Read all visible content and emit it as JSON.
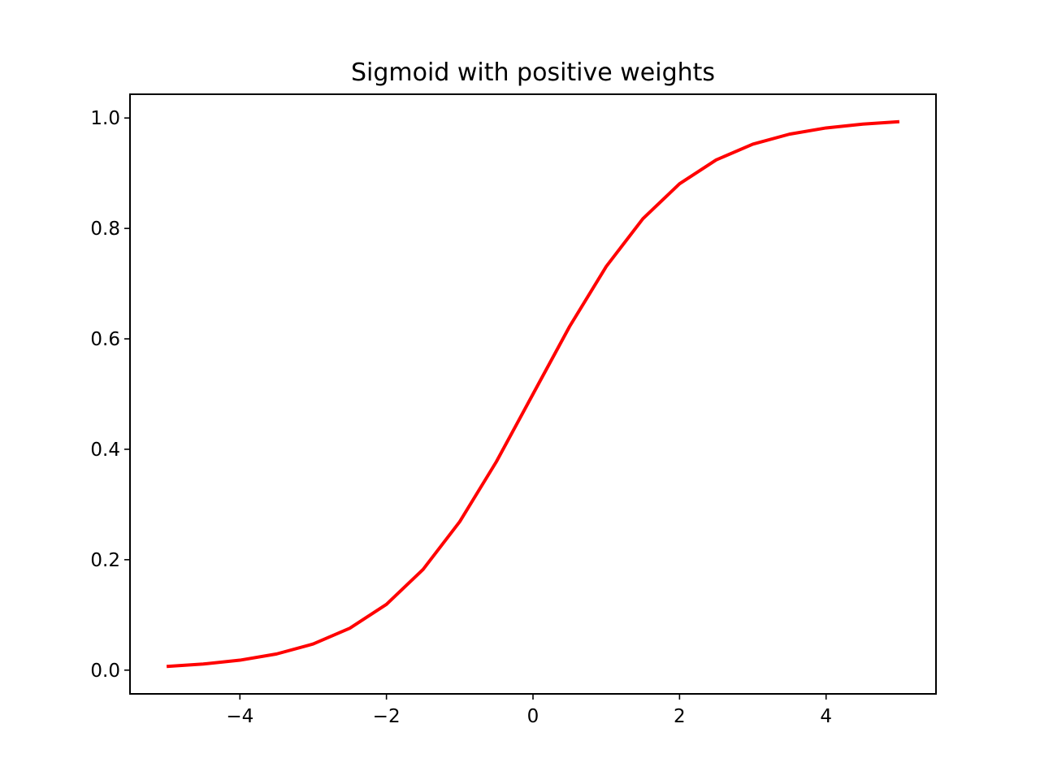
{
  "chart_data": {
    "type": "line",
    "title": "Sigmoid with positive weights",
    "xlabel": "",
    "ylabel": "",
    "xlim": [
      -5.5,
      5.5
    ],
    "ylim": [
      -0.043,
      1.043
    ],
    "xticks": [
      -4,
      -2,
      0,
      2,
      4
    ],
    "xtick_labels": [
      "−4",
      "−2",
      "0",
      "2",
      "4"
    ],
    "yticks": [
      0.0,
      0.2,
      0.4,
      0.6,
      0.8,
      1.0
    ],
    "ytick_labels": [
      "0.0",
      "0.2",
      "0.4",
      "0.6",
      "0.8",
      "1.0"
    ],
    "grid": false,
    "legend": "none",
    "series": [
      {
        "color": "#ff0000",
        "x": [
          -5,
          -4.5,
          -4,
          -3.5,
          -3,
          -2.5,
          -2,
          -1.5,
          -1,
          -0.5,
          0,
          0.5,
          1,
          1.5,
          2,
          2.5,
          3,
          3.5,
          4,
          4.5,
          5
        ],
        "y": [
          0.0067,
          0.011,
          0.018,
          0.0293,
          0.0474,
          0.0759,
          0.1192,
          0.1824,
          0.2689,
          0.3775,
          0.5,
          0.6225,
          0.7311,
          0.8176,
          0.8808,
          0.9241,
          0.9526,
          0.9707,
          0.982,
          0.989,
          0.9933
        ]
      }
    ]
  }
}
